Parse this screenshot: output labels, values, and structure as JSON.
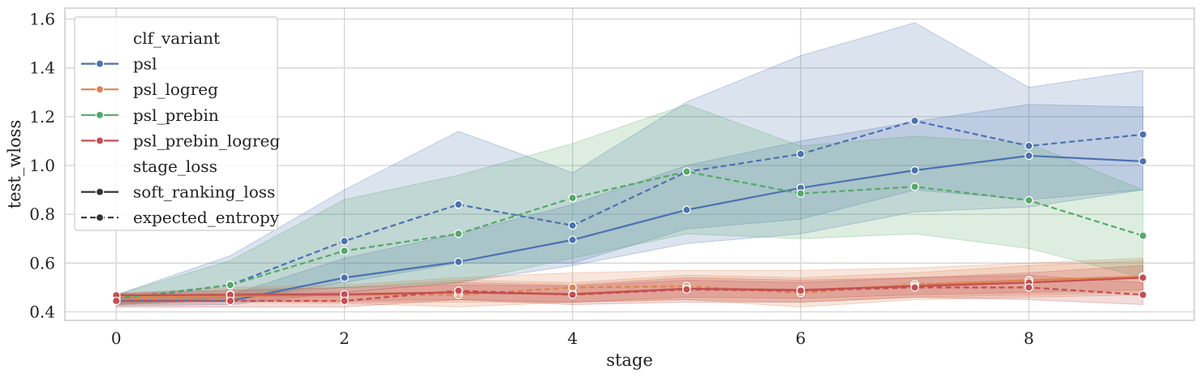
{
  "chart_data": {
    "type": "line",
    "title": "",
    "xlabel": "stage",
    "ylabel": "test_wloss",
    "xlim": [
      -0.45,
      9.45
    ],
    "ylim": [
      0.365,
      1.645
    ],
    "xticks": [
      "0",
      "2",
      "4",
      "6",
      "8"
    ],
    "yticks": [
      "0.4",
      "0.6",
      "0.8",
      "1.0",
      "1.2",
      "1.4",
      "1.6"
    ],
    "grid": true,
    "legend_position": "top-left",
    "legend": {
      "hue_title": "clf_variant",
      "style_title": "stage_loss",
      "hue_entries": [
        "psl",
        "psl_logreg",
        "psl_prebin",
        "psl_prebin_logreg"
      ],
      "style_entries": [
        "soft_ranking_loss",
        "expected_entropy"
      ]
    },
    "x": [
      0,
      1,
      2,
      3,
      4,
      5,
      6,
      7,
      8,
      9
    ],
    "series": [
      {
        "name": "psl",
        "stage_loss": "soft_ranking_loss",
        "dash": "solid",
        "color": "#4c72b0",
        "values": [
          0.445,
          0.445,
          0.54,
          0.605,
          0.695,
          0.818,
          0.908,
          0.98,
          1.04,
          1.017
        ],
        "ci_low": [
          0.425,
          0.43,
          0.48,
          0.52,
          0.59,
          0.68,
          0.72,
          0.81,
          0.83,
          0.9
        ],
        "ci_high": [
          0.465,
          0.47,
          0.62,
          0.72,
          0.84,
          1.0,
          1.1,
          1.18,
          1.25,
          1.24
        ]
      },
      {
        "name": "psl",
        "stage_loss": "expected_entropy",
        "dash": "dashed",
        "color": "#4c72b0",
        "values": [
          0.45,
          0.51,
          0.69,
          0.84,
          0.754,
          0.974,
          1.047,
          1.183,
          1.08,
          1.127
        ],
        "ci_low": [
          0.43,
          0.45,
          0.52,
          0.6,
          0.6,
          0.74,
          0.78,
          0.9,
          0.86,
          0.9
        ],
        "ci_high": [
          0.47,
          0.63,
          0.9,
          1.14,
          0.97,
          1.26,
          1.45,
          1.585,
          1.32,
          1.39
        ]
      },
      {
        "name": "psl_logreg",
        "stage_loss": "soft_ranking_loss",
        "dash": "solid",
        "color": "#dd8452",
        "values": [
          0.46,
          0.465,
          0.468,
          0.48,
          0.475,
          0.495,
          0.485,
          0.51,
          0.53,
          0.545
        ],
        "ci_low": [
          0.435,
          0.445,
          0.44,
          0.44,
          0.44,
          0.45,
          0.44,
          0.46,
          0.47,
          0.48
        ],
        "ci_high": [
          0.475,
          0.485,
          0.5,
          0.53,
          0.52,
          0.55,
          0.54,
          0.56,
          0.59,
          0.61
        ]
      },
      {
        "name": "psl_logreg",
        "stage_loss": "expected_entropy",
        "dash": "dashed",
        "color": "#dd8452",
        "values": [
          0.45,
          0.472,
          0.47,
          0.47,
          0.5,
          0.505,
          0.478,
          0.513,
          0.528,
          0.543
        ],
        "ci_low": [
          0.43,
          0.44,
          0.435,
          0.42,
          0.44,
          0.45,
          0.42,
          0.45,
          0.46,
          0.47
        ],
        "ci_high": [
          0.475,
          0.5,
          0.51,
          0.54,
          0.56,
          0.57,
          0.57,
          0.58,
          0.6,
          0.62
        ]
      },
      {
        "name": "psl_prebin",
        "stage_loss": "expected_entropy",
        "dash": "dashed",
        "color": "#55a868",
        "values": [
          0.455,
          0.51,
          0.65,
          0.72,
          0.867,
          0.975,
          0.885,
          0.913,
          0.857,
          0.712
        ],
        "ci_low": [
          0.43,
          0.46,
          0.5,
          0.52,
          0.62,
          0.72,
          0.7,
          0.72,
          0.66,
          0.54
        ],
        "ci_high": [
          0.47,
          0.61,
          0.86,
          0.96,
          1.09,
          1.25,
          1.08,
          1.12,
          1.09,
          0.9
        ]
      },
      {
        "name": "psl_prebin_logreg",
        "stage_loss": "soft_ranking_loss",
        "dash": "solid",
        "color": "#c44e52",
        "values": [
          0.468,
          0.47,
          0.472,
          0.48,
          0.472,
          0.495,
          0.49,
          0.505,
          0.52,
          0.54
        ],
        "ci_low": [
          0.44,
          0.445,
          0.445,
          0.45,
          0.44,
          0.46,
          0.455,
          0.47,
          0.48,
          0.49
        ],
        "ci_high": [
          0.475,
          0.49,
          0.5,
          0.51,
          0.505,
          0.53,
          0.52,
          0.54,
          0.56,
          0.59
        ]
      },
      {
        "name": "psl_prebin_logreg",
        "stage_loss": "expected_entropy",
        "dash": "dashed",
        "color": "#c44e52",
        "values": [
          0.445,
          0.445,
          0.445,
          0.487,
          0.47,
          0.492,
          0.487,
          0.5,
          0.5,
          0.47
        ],
        "ci_low": [
          0.42,
          0.42,
          0.42,
          0.45,
          0.43,
          0.44,
          0.44,
          0.46,
          0.45,
          0.43
        ],
        "ci_high": [
          0.47,
          0.475,
          0.48,
          0.52,
          0.51,
          0.54,
          0.53,
          0.54,
          0.55,
          0.52
        ]
      }
    ]
  },
  "colors": {
    "psl": "#4c72b0",
    "psl_logreg": "#dd8452",
    "psl_prebin": "#55a868",
    "psl_prebin_logreg": "#c44e52",
    "style_line": "#333333",
    "grid": "#d4d4d4",
    "axes_edge": "#cccccc"
  }
}
